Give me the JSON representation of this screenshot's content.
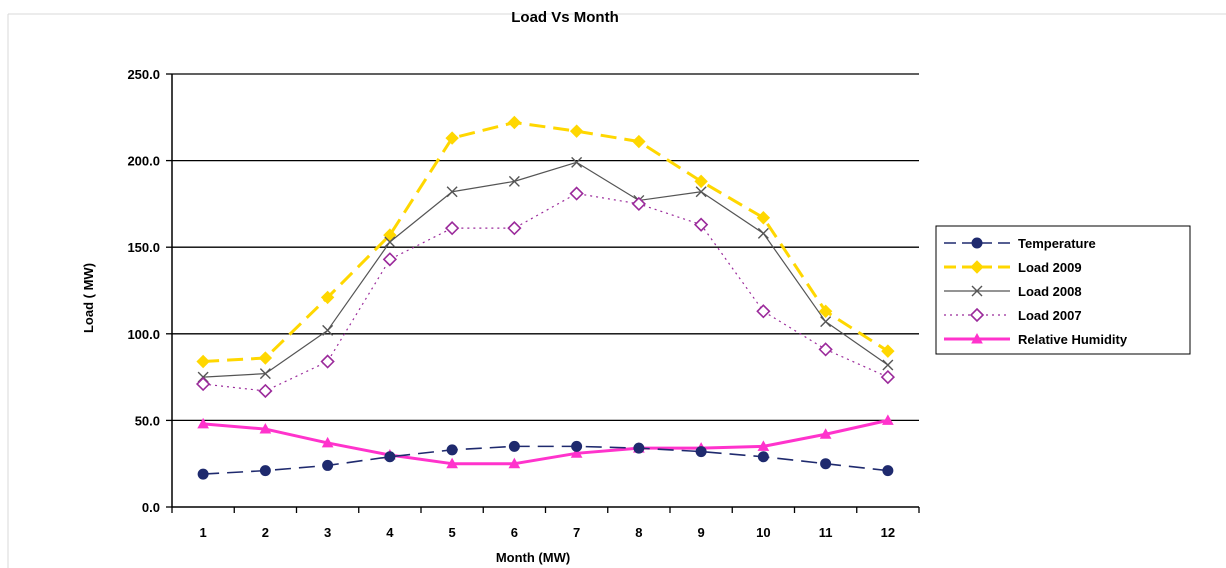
{
  "chart_data": {
    "type": "line",
    "title": "Load Vs Month",
    "xlabel": "Month (MW)",
    "ylabel": "Load ( MW)",
    "x": [
      1,
      2,
      3,
      4,
      5,
      6,
      7,
      8,
      9,
      10,
      11,
      12
    ],
    "ylim": [
      0,
      250
    ],
    "yticks": [
      "0.0",
      "50.0",
      "100.0",
      "150.0",
      "200.0",
      "250.0"
    ],
    "grid": true,
    "legend_position": "right",
    "series": [
      {
        "name": "Temperature",
        "values": [
          19,
          21,
          24,
          29,
          33,
          35,
          35,
          34,
          32,
          29,
          25,
          21
        ],
        "color": "#1f2a6e",
        "dash": "long-dash",
        "marker": "circle-filled"
      },
      {
        "name": "Load 2009",
        "values": [
          84,
          86,
          121,
          157,
          213,
          222,
          217,
          211,
          188,
          167,
          113,
          90
        ],
        "color": "#ffd700",
        "dash": "long-dash",
        "marker": "diamond-filled"
      },
      {
        "name": "Load 2008",
        "values": [
          75,
          77,
          102,
          153,
          182,
          188,
          199,
          177,
          182,
          158,
          107,
          82
        ],
        "color": "#555555",
        "dash": "solid",
        "marker": "x"
      },
      {
        "name": "Load 2007",
        "values": [
          71,
          67,
          84,
          143,
          161,
          161,
          181,
          175,
          163,
          113,
          91,
          75
        ],
        "color": "#9b2a9b",
        "dash": "dotted",
        "marker": "diamond-open"
      },
      {
        "name": "Relative Humidity",
        "values": [
          48,
          45,
          37,
          30,
          25,
          25,
          31,
          34,
          34,
          35,
          42,
          50
        ],
        "color": "#ff33cc",
        "dash": "solid",
        "marker": "triangle-filled"
      }
    ]
  }
}
